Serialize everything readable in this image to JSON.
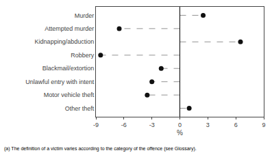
{
  "chart_data": {
    "type": "dot",
    "orientation": "horizontal",
    "categories": [
      "Murder",
      "Attempted murder",
      "Kidnapping/abduction",
      "Robbery",
      "Blackmail/extortion",
      "Unlawful entry with intent",
      "Motor vehicle theft",
      "Other theft"
    ],
    "values": [
      2.5,
      -6.5,
      6.5,
      -8.5,
      -2.0,
      -3.0,
      -3.5,
      1.0
    ],
    "color": "#111111",
    "marker": "circle",
    "line_style": "dashed",
    "xlim": [
      -9,
      9
    ],
    "xticks": [
      -9,
      -6,
      -3,
      0,
      3,
      6,
      9
    ],
    "xlabel": "%",
    "grid": false,
    "annotations": [
      {
        "text": "(a) The definition of a victim varies according to the category of the offence (see Glossary)."
      }
    ]
  }
}
